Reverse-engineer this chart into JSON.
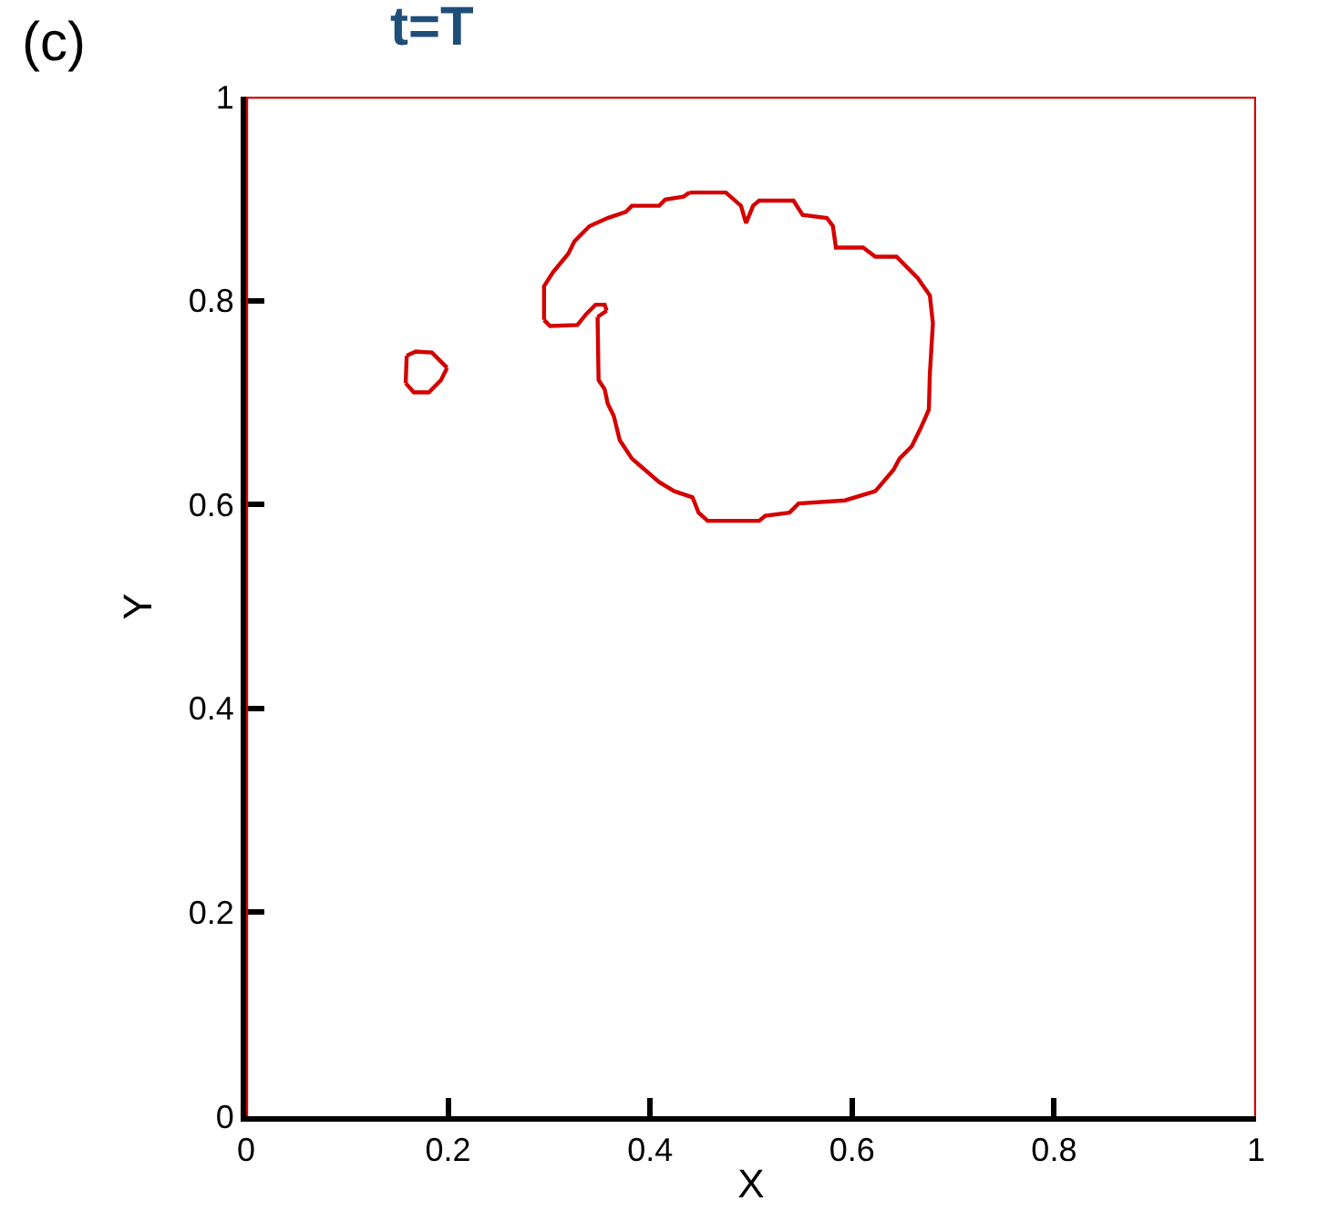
{
  "chart_data": {
    "type": "line",
    "title": "t=T",
    "xlabel": "X",
    "ylabel": "Y",
    "annotations": [
      "(c)"
    ],
    "xlim": [
      0,
      1
    ],
    "ylim": [
      0,
      1
    ],
    "xticks": [
      0,
      0.2,
      0.4,
      0.6,
      0.8,
      1
    ],
    "yticks": [
      0,
      0.2,
      0.4,
      0.6,
      0.8,
      1
    ],
    "marker": "none",
    "line_style": "solid",
    "ref_lines": [
      {
        "axis": "y",
        "value": 1,
        "color": "#d40000"
      },
      {
        "axis": "x",
        "value": 1,
        "color": "#d40000"
      },
      {
        "axis": "x",
        "value": 0,
        "color": "#d40000"
      }
    ],
    "series": [
      {
        "color": "#d40000",
        "x": [
          0.439,
          0.475,
          0.49,
          0.495,
          0.502,
          0.508,
          0.542,
          0.551,
          0.575,
          0.581,
          0.584,
          0.611,
          0.623,
          0.644,
          0.665,
          0.677,
          0.68,
          0.677,
          0.676,
          0.668,
          0.659,
          0.647,
          0.641,
          0.623,
          0.593,
          0.547,
          0.538,
          0.514,
          0.508,
          0.457,
          0.448,
          0.442,
          0.424,
          0.409,
          0.382,
          0.37,
          0.364,
          0.358,
          0.355,
          0.349,
          0.348
        ],
        "values": [
          0.906,
          0.906,
          0.893,
          0.876,
          0.893,
          0.898,
          0.898,
          0.884,
          0.881,
          0.873,
          0.852,
          0.852,
          0.843,
          0.843,
          0.822,
          0.805,
          0.778,
          0.728,
          0.693,
          0.675,
          0.657,
          0.645,
          0.634,
          0.613,
          0.604,
          0.601,
          0.592,
          0.589,
          0.584,
          0.584,
          0.592,
          0.607,
          0.613,
          0.622,
          0.645,
          0.663,
          0.687,
          0.699,
          0.713,
          0.722,
          0.784
        ]
      },
      {
        "color": "#d40000",
        "x": [
          0.348,
          0.357
        ],
        "values": [
          0.784,
          0.79
        ]
      },
      {
        "color": "#d40000",
        "x": [
          0.357,
          0.355,
          0.346,
          0.337,
          0.328,
          0.301,
          0.295
        ],
        "values": [
          0.79,
          0.796,
          0.796,
          0.787,
          0.776,
          0.775,
          0.781
        ]
      },
      {
        "color": "#d40000",
        "x": [
          0.295,
          0.295,
          0.304,
          0.319,
          0.325,
          0.34,
          0.358,
          0.376,
          0.382,
          0.409,
          0.415,
          0.433,
          0.439
        ],
        "values": [
          0.781,
          0.814,
          0.828,
          0.846,
          0.858,
          0.873,
          0.881,
          0.887,
          0.893,
          0.893,
          0.899,
          0.902,
          0.906
        ]
      },
      {
        "color": "#d40000",
        "x": [
          0.159,
          0.168,
          0.184,
          0.199
        ],
        "values": [
          0.746,
          0.75,
          0.749,
          0.734
        ]
      },
      {
        "color": "#d40000",
        "x": [
          0.199,
          0.193,
          0.181,
          0.166,
          0.158
        ],
        "values": [
          0.734,
          0.722,
          0.71,
          0.71,
          0.719
        ]
      },
      {
        "color": "#d40000",
        "x": [
          0.158,
          0.159
        ],
        "values": [
          0.719,
          0.746
        ]
      }
    ]
  }
}
